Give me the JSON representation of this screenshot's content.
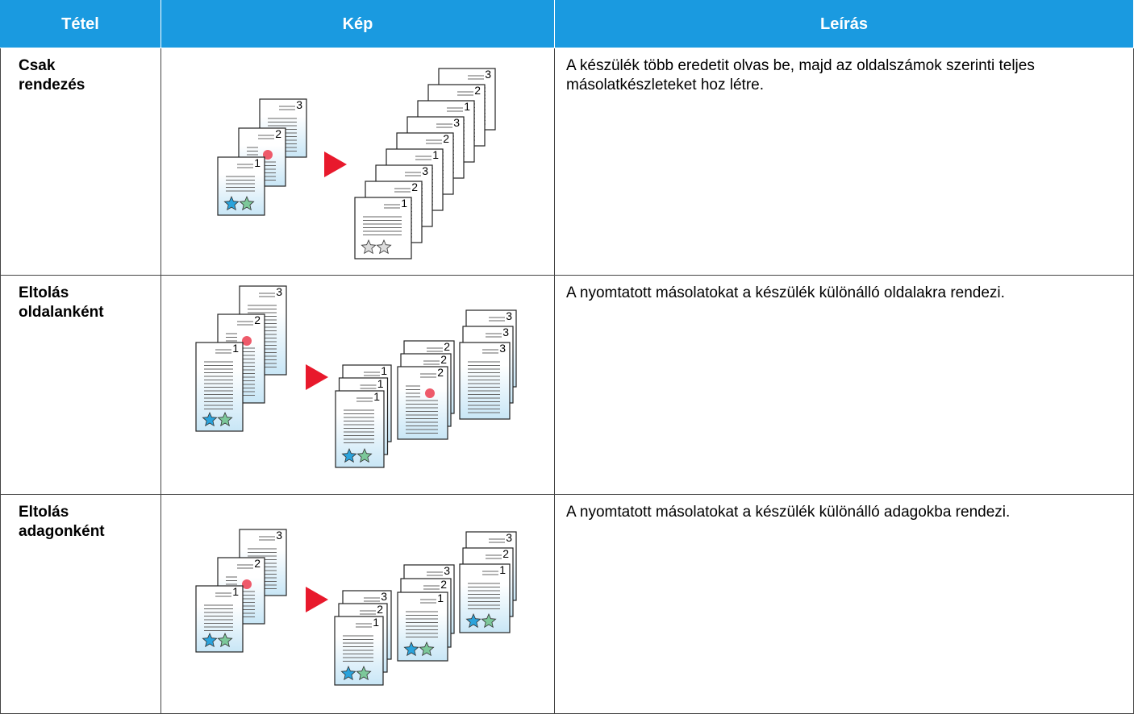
{
  "table": {
    "headers": [
      "Tétel",
      "Kép",
      "Leírás"
    ],
    "rows": [
      {
        "item": "Csak rendezés",
        "image": {
          "input": [
            "1",
            "2",
            "3"
          ],
          "output": [
            [
              "1",
              "2",
              "3",
              "1",
              "2",
              "3",
              "1",
              "2",
              "3"
            ]
          ]
        },
        "description": "A készülék több eredetit olvas be, majd az oldalszámok szerinti teljes másolatkészleteket hoz létre."
      },
      {
        "item": "Eltolás oldalanként",
        "image": {
          "input": [
            "1",
            "2",
            "3"
          ],
          "output": [
            [
              "1",
              "1",
              "1"
            ],
            [
              "2",
              "2",
              "2"
            ],
            [
              "3",
              "3",
              "3"
            ]
          ]
        },
        "description": "A nyomtatott másolatokat a készülék különálló oldalakra rendezi."
      },
      {
        "item": "Eltolás adagonként",
        "image": {
          "input": [
            "1",
            "2",
            "3"
          ],
          "output": [
            [
              "1",
              "2",
              "3"
            ],
            [
              "1",
              "2",
              "3"
            ],
            [
              "1",
              "2",
              "3"
            ]
          ]
        },
        "description": "A nyomtatott másolatokat a készülék különálló adagokba rendezi."
      }
    ]
  }
}
